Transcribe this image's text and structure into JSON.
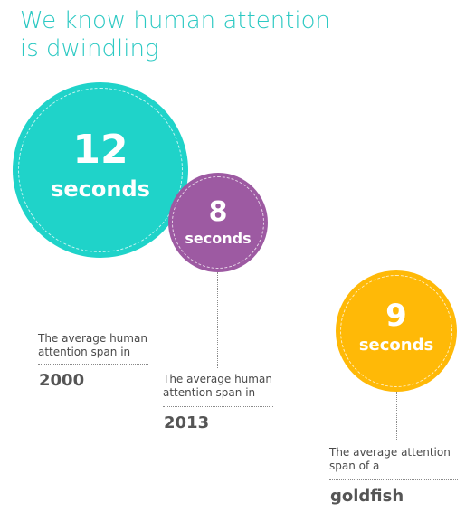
{
  "title": {
    "line1": "We know human attention",
    "line2": "is dwindling"
  },
  "colors": {
    "title": "#2cc9c3",
    "teal": "#1fd3c9",
    "purple": "#9d5aa2",
    "gold": "#ffb907"
  },
  "chart_data": {
    "type": "bubble",
    "title": "We know human attention is dwindling",
    "unit": "seconds",
    "items": [
      {
        "value": 12,
        "value_label": "12",
        "unit_label": "seconds",
        "desc_line1": "The average human",
        "desc_line2": "attention span in",
        "category": "2000",
        "color": "#1fd3c9"
      },
      {
        "value": 8,
        "value_label": "8",
        "unit_label": "seconds",
        "desc_line1": "The average human",
        "desc_line2": "attention span in",
        "category": "2013",
        "color": "#9d5aa2"
      },
      {
        "value": 9,
        "value_label": "9",
        "unit_label": "seconds",
        "desc_line1": "The average attention",
        "desc_line2": "span of a",
        "category": "goldfish",
        "color": "#ffb907"
      }
    ]
  }
}
